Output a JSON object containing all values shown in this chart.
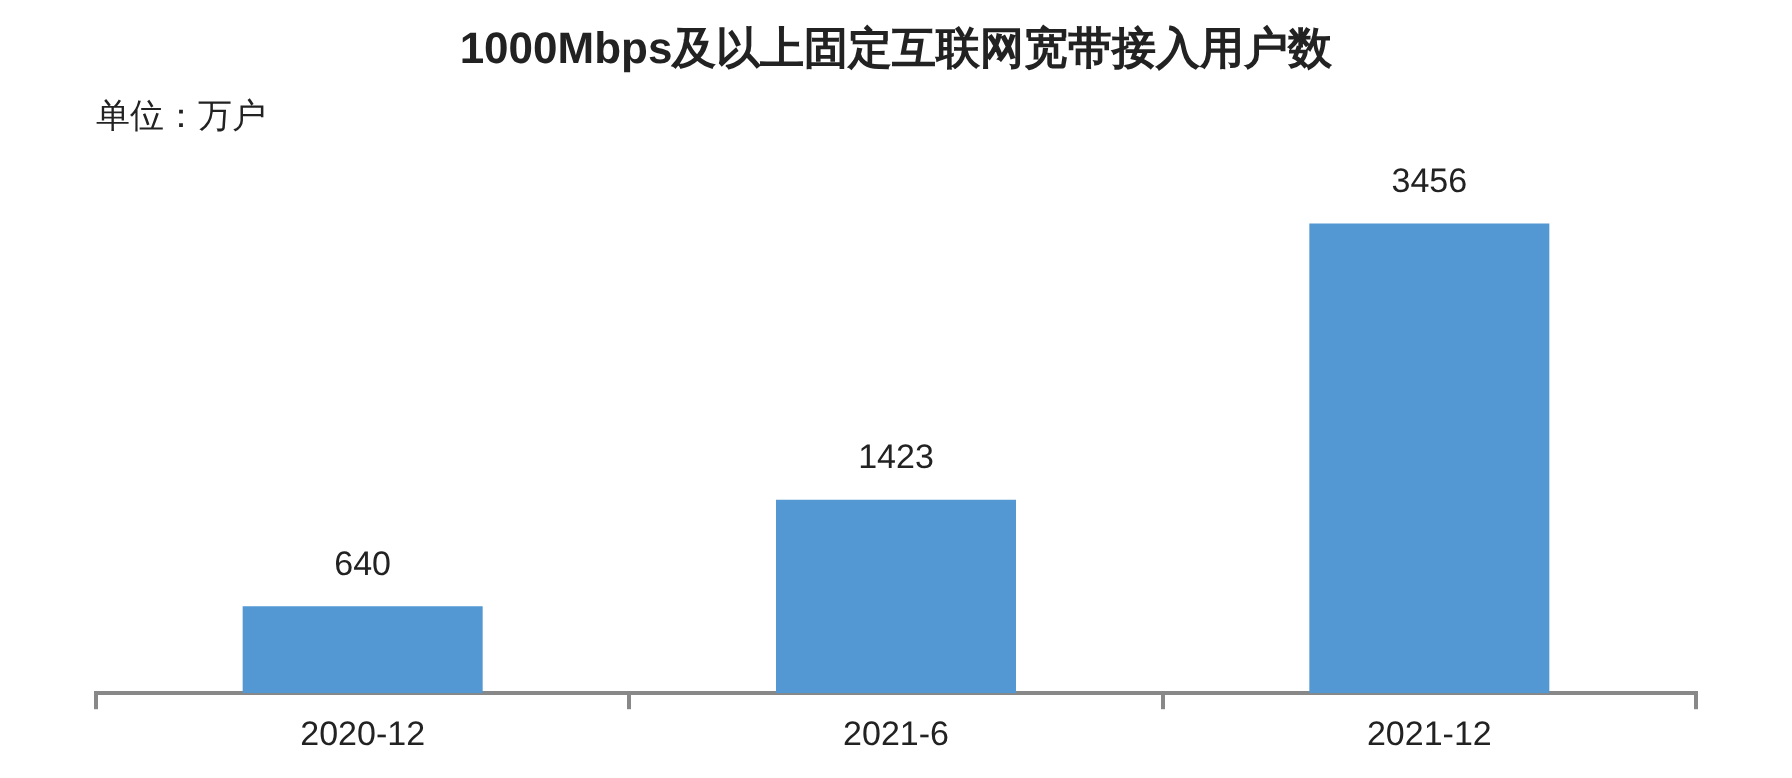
{
  "chart_data": {
    "type": "bar",
    "title": "1000Mbps及以上固定互联网宽带接入用户数",
    "subtitle": "单位：万户",
    "categories": [
      "2020-12",
      "2021-6",
      "2021-12"
    ],
    "values": [
      640,
      1423,
      3456
    ],
    "color": "#5398d3",
    "data_labels": true,
    "grid": false,
    "legend": false
  }
}
